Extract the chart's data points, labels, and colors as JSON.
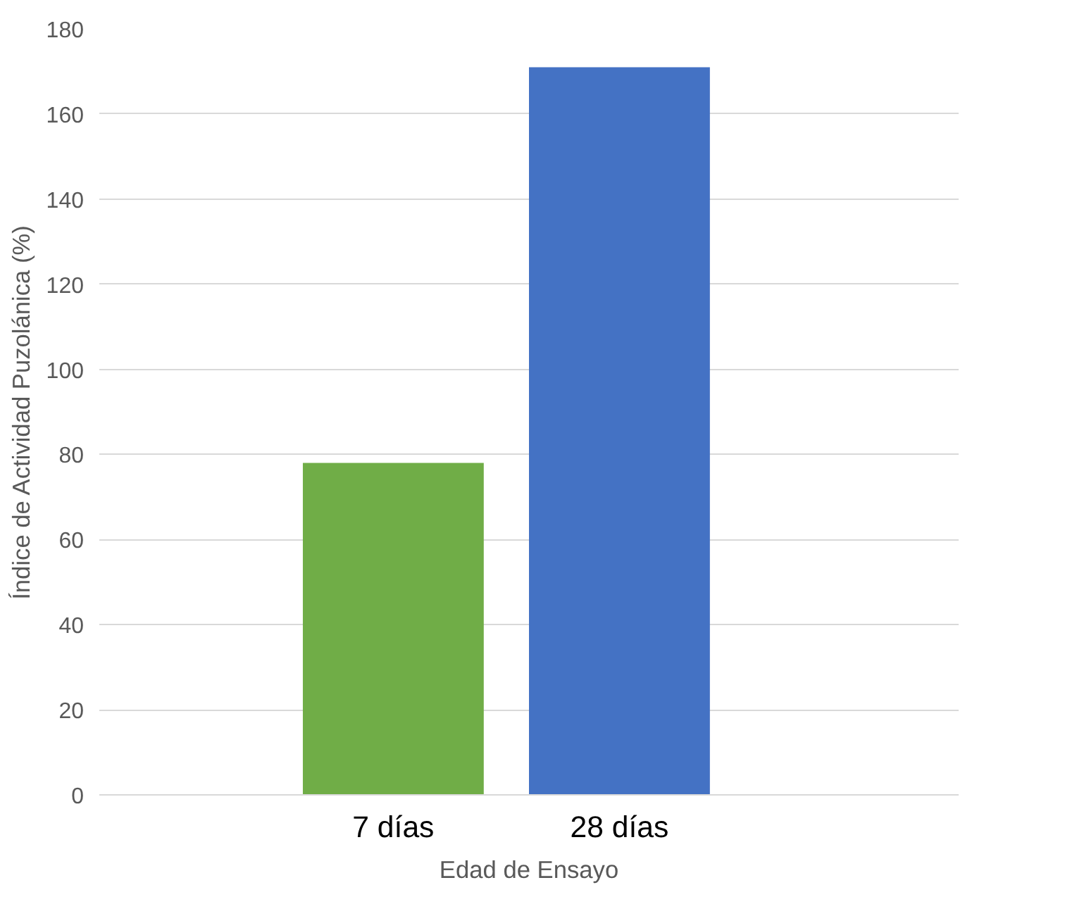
{
  "chart_data": {
    "type": "bar",
    "xlabel": "Edad de Ensayo",
    "ylabel": "Índice de Actividad Puzolánica (%)",
    "categories": [
      "7 días",
      "28 días"
    ],
    "values": [
      78,
      171
    ],
    "colors": [
      "#70ad47",
      "#4472c4"
    ],
    "ylim": [
      0,
      180
    ],
    "yticks": [
      0,
      20,
      40,
      60,
      80,
      100,
      120,
      140,
      160,
      180
    ],
    "grid": "y"
  }
}
